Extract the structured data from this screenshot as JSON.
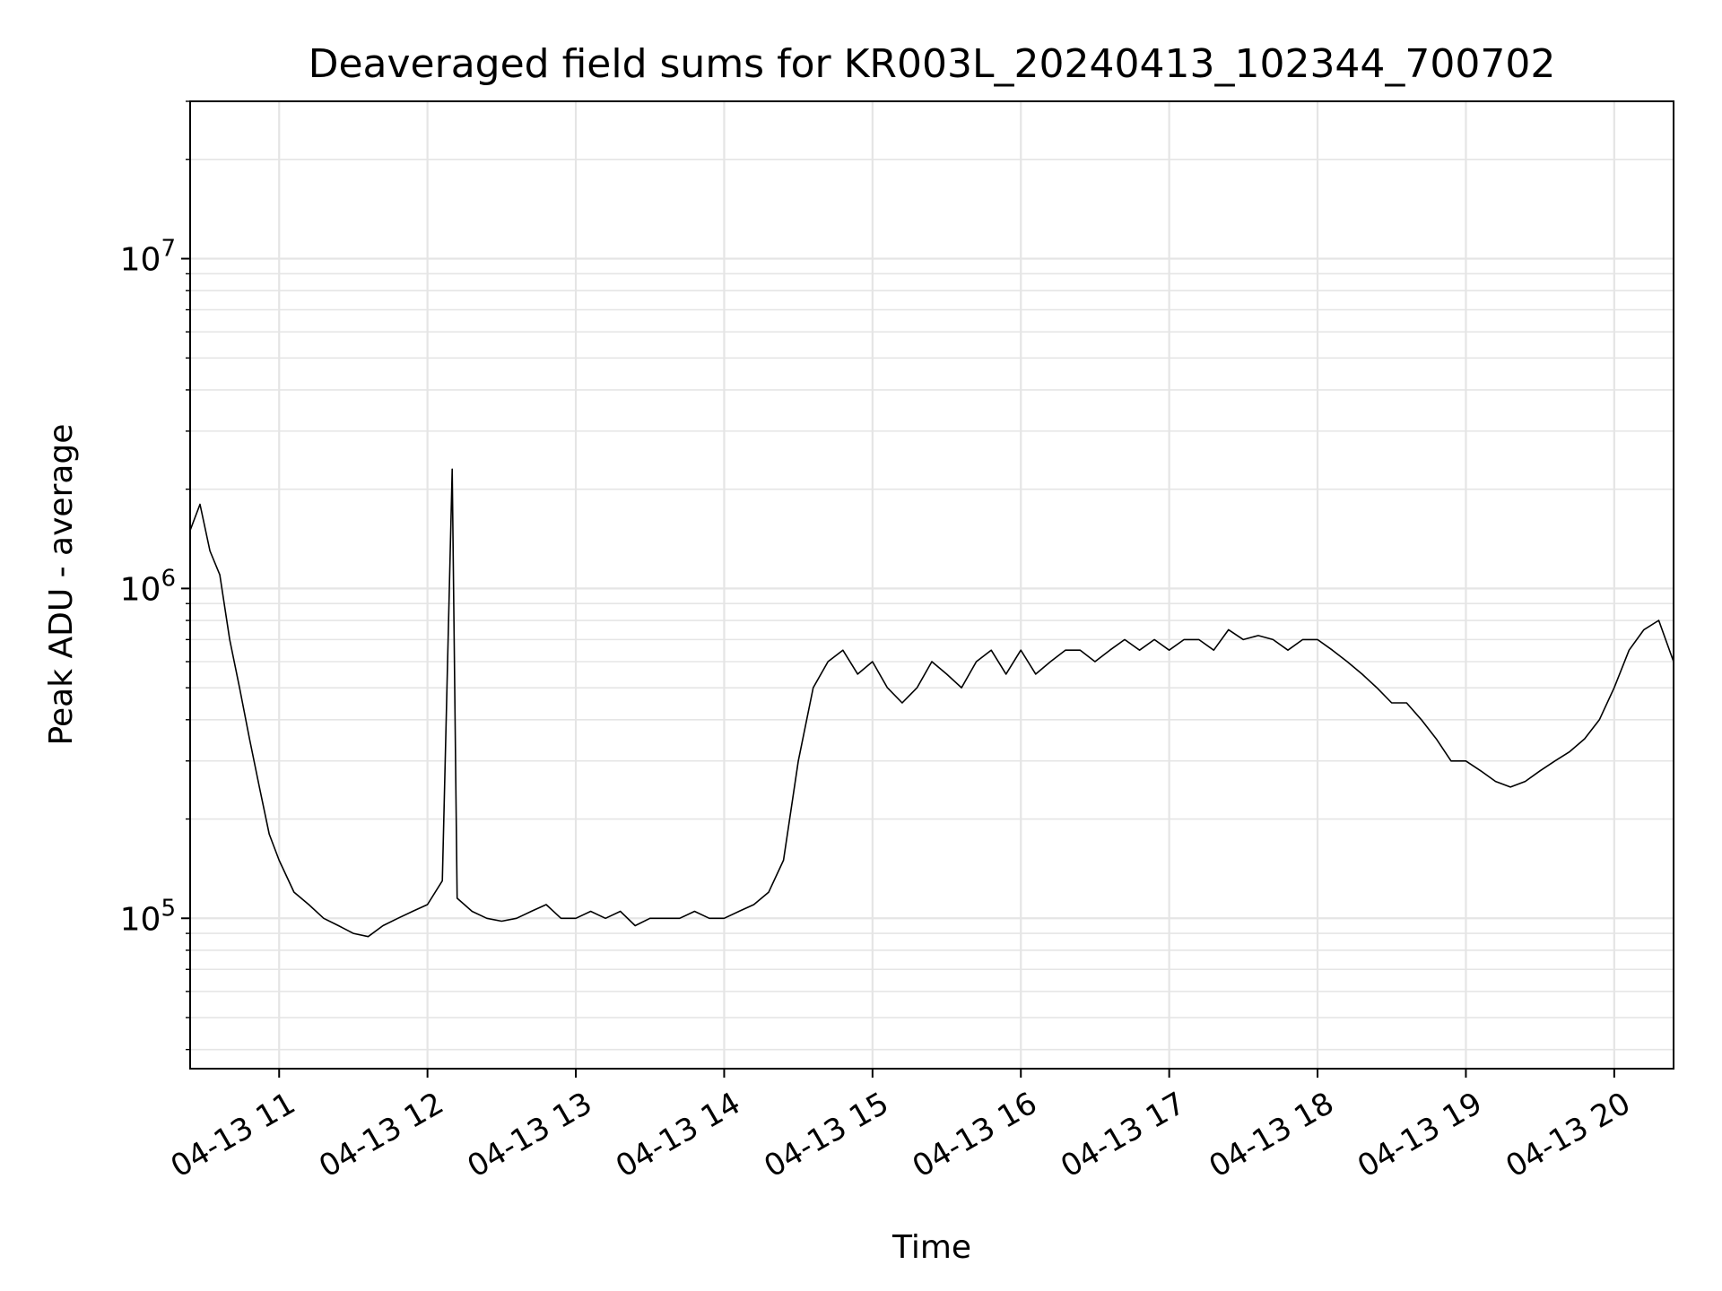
{
  "chart_data": {
    "type": "line",
    "title": "Deaveraged field sums for KR003L_20240413_102344_700702",
    "xlabel": "Time",
    "ylabel": "Peak ADU - average",
    "yscale": "log",
    "ylim": [
      35000,
      30000000
    ],
    "xlim": [
      "2024-04-13 10:24",
      "2024-04-13 20:24"
    ],
    "grid": "major and minor",
    "line_color": "#000000",
    "grid_color": "#e5e5e5",
    "xticks": [
      {
        "t": "2024-04-13 11:00",
        "label": "04-13 11"
      },
      {
        "t": "2024-04-13 12:00",
        "label": "04-13 12"
      },
      {
        "t": "2024-04-13 13:00",
        "label": "04-13 13"
      },
      {
        "t": "2024-04-13 14:00",
        "label": "04-13 14"
      },
      {
        "t": "2024-04-13 15:00",
        "label": "04-13 15"
      },
      {
        "t": "2024-04-13 16:00",
        "label": "04-13 16"
      },
      {
        "t": "2024-04-13 17:00",
        "label": "04-13 17"
      },
      {
        "t": "2024-04-13 18:00",
        "label": "04-13 18"
      },
      {
        "t": "2024-04-13 19:00",
        "label": "04-13 19"
      },
      {
        "t": "2024-04-13 20:00",
        "label": "04-13 20"
      }
    ],
    "yticks": [
      {
        "value": 100000,
        "base": "10",
        "exp": "5"
      },
      {
        "value": 1000000,
        "base": "10",
        "exp": "6"
      },
      {
        "value": 10000000,
        "base": "10",
        "exp": "7"
      }
    ],
    "series": [
      {
        "x": [
          "2024-04-13 10:24",
          "2024-04-13 10:28",
          "2024-04-13 10:32",
          "2024-04-13 10:36",
          "2024-04-13 10:40",
          "2024-04-13 10:44",
          "2024-04-13 10:48",
          "2024-04-13 10:52",
          "2024-04-13 10:56",
          "2024-04-13 11:00",
          "2024-04-13 11:06",
          "2024-04-13 11:12",
          "2024-04-13 11:18",
          "2024-04-13 11:24",
          "2024-04-13 11:30",
          "2024-04-13 11:36",
          "2024-04-13 11:42",
          "2024-04-13 11:48",
          "2024-04-13 11:54",
          "2024-04-13 12:00",
          "2024-04-13 12:06",
          "2024-04-13 12:10",
          "2024-04-13 12:12",
          "2024-04-13 12:18",
          "2024-04-13 12:24",
          "2024-04-13 12:30",
          "2024-04-13 12:36",
          "2024-04-13 12:42",
          "2024-04-13 12:48",
          "2024-04-13 12:54",
          "2024-04-13 13:00",
          "2024-04-13 13:06",
          "2024-04-13 13:12",
          "2024-04-13 13:18",
          "2024-04-13 13:24",
          "2024-04-13 13:30",
          "2024-04-13 13:36",
          "2024-04-13 13:42",
          "2024-04-13 13:48",
          "2024-04-13 13:54",
          "2024-04-13 14:00",
          "2024-04-13 14:06",
          "2024-04-13 14:12",
          "2024-04-13 14:18",
          "2024-04-13 14:24",
          "2024-04-13 14:30",
          "2024-04-13 14:36",
          "2024-04-13 14:42",
          "2024-04-13 14:48",
          "2024-04-13 14:54",
          "2024-04-13 15:00",
          "2024-04-13 15:06",
          "2024-04-13 15:12",
          "2024-04-13 15:18",
          "2024-04-13 15:24",
          "2024-04-13 15:30",
          "2024-04-13 15:36",
          "2024-04-13 15:42",
          "2024-04-13 15:48",
          "2024-04-13 15:54",
          "2024-04-13 16:00",
          "2024-04-13 16:06",
          "2024-04-13 16:12",
          "2024-04-13 16:18",
          "2024-04-13 16:24",
          "2024-04-13 16:30",
          "2024-04-13 16:36",
          "2024-04-13 16:42",
          "2024-04-13 16:48",
          "2024-04-13 16:54",
          "2024-04-13 17:00",
          "2024-04-13 17:06",
          "2024-04-13 17:12",
          "2024-04-13 17:18",
          "2024-04-13 17:24",
          "2024-04-13 17:30",
          "2024-04-13 17:36",
          "2024-04-13 17:42",
          "2024-04-13 17:48",
          "2024-04-13 17:54",
          "2024-04-13 18:00",
          "2024-04-13 18:06",
          "2024-04-13 18:12",
          "2024-04-13 18:18",
          "2024-04-13 18:24",
          "2024-04-13 18:30",
          "2024-04-13 18:36",
          "2024-04-13 18:42",
          "2024-04-13 18:48",
          "2024-04-13 18:54",
          "2024-04-13 19:00",
          "2024-04-13 19:06",
          "2024-04-13 19:12",
          "2024-04-13 19:18",
          "2024-04-13 19:24",
          "2024-04-13 19:30",
          "2024-04-13 19:36",
          "2024-04-13 19:42",
          "2024-04-13 19:48",
          "2024-04-13 19:54",
          "2024-04-13 20:00",
          "2024-04-13 20:06",
          "2024-04-13 20:12",
          "2024-04-13 20:18",
          "2024-04-13 20:24"
        ],
        "y": [
          1500000,
          1800000,
          1300000,
          1100000,
          700000,
          500000,
          350000,
          250000,
          180000,
          150000,
          120000,
          110000,
          100000,
          95000,
          90000,
          88000,
          95000,
          100000,
          105000,
          110000,
          130000,
          2300000,
          115000,
          105000,
          100000,
          98000,
          100000,
          105000,
          110000,
          100000,
          100000,
          105000,
          100000,
          105000,
          95000,
          100000,
          100000,
          100000,
          105000,
          100000,
          100000,
          105000,
          110000,
          120000,
          150000,
          300000,
          500000,
          600000,
          650000,
          550000,
          600000,
          500000,
          450000,
          500000,
          600000,
          550000,
          500000,
          600000,
          650000,
          550000,
          650000,
          550000,
          600000,
          650000,
          650000,
          600000,
          650000,
          700000,
          650000,
          700000,
          650000,
          700000,
          700000,
          650000,
          750000,
          700000,
          720000,
          700000,
          650000,
          700000,
          700000,
          650000,
          600000,
          550000,
          500000,
          450000,
          450000,
          400000,
          350000,
          300000,
          300000,
          280000,
          260000,
          250000,
          260000,
          280000,
          300000,
          320000,
          350000,
          400000,
          500000,
          650000,
          750000,
          800000,
          600000
        ]
      }
    ]
  }
}
